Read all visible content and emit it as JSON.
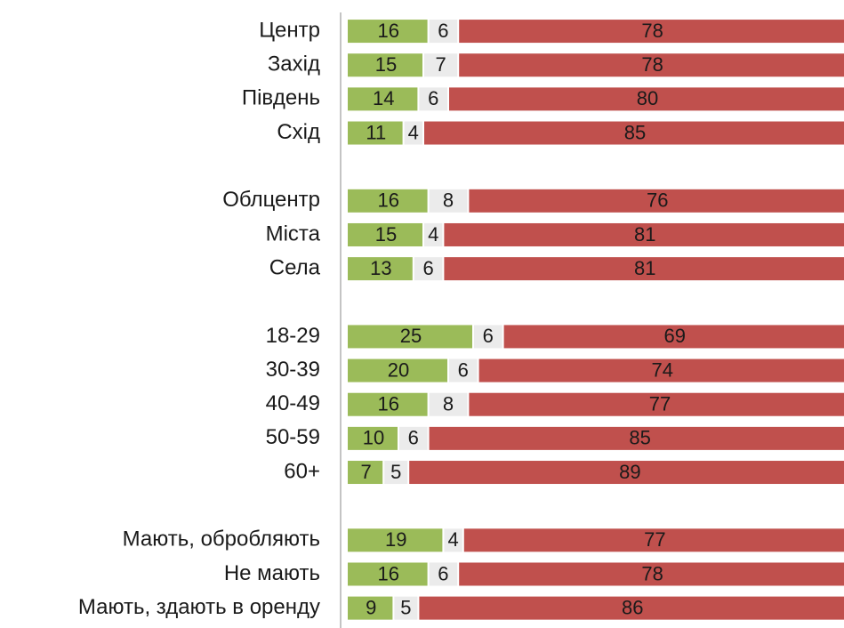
{
  "chart_data": {
    "type": "stacked-barh",
    "categories": [
      "Центр",
      "Захід",
      "Південь",
      "Схід",
      null,
      "Облцентр",
      "Міста",
      "Села",
      null,
      "18-29",
      "30-39",
      "40-49",
      "50-59",
      "60+",
      null,
      "Мають, обробляють",
      "Не мають",
      "Мають, здають в оренду"
    ],
    "series": [
      {
        "color": "#9bbb59",
        "values": [
          16,
          15,
          14,
          11,
          null,
          16,
          15,
          13,
          null,
          25,
          20,
          16,
          10,
          7,
          null,
          19,
          16,
          9
        ]
      },
      {
        "color": "#ebebeb",
        "values": [
          6,
          7,
          6,
          4,
          null,
          8,
          4,
          6,
          null,
          6,
          6,
          8,
          6,
          5,
          null,
          4,
          6,
          5
        ]
      },
      {
        "color": "#c0504d",
        "values": [
          78,
          78,
          80,
          85,
          null,
          76,
          81,
          81,
          null,
          69,
          74,
          77,
          85,
          89,
          null,
          77,
          78,
          86
        ]
      }
    ],
    "xlim": [
      0,
      100
    ]
  }
}
